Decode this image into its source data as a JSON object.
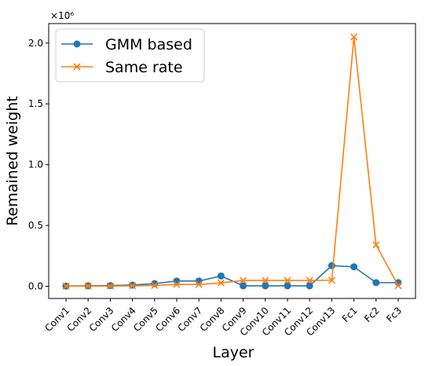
{
  "chart_data": {
    "type": "line",
    "xlabel": "Layer",
    "ylabel": "Remained weight",
    "y_multiplier": "×10⁶",
    "categories": [
      "Conv1",
      "Conv2",
      "Conv3",
      "Conv4",
      "Conv5",
      "Conv6",
      "Conv7",
      "Conv8",
      "Conv9",
      "Conv10",
      "Conv11",
      "Conv12",
      "Conv13",
      "Fc1",
      "Fc2",
      "Fc3"
    ],
    "y_ticks": [
      0.0,
      0.5,
      1.0,
      1.5,
      2.0
    ],
    "y_tick_labels": [
      "0.0",
      "0.5",
      "1.0",
      "1.5",
      "2.0"
    ],
    "ylim": [
      -0.1,
      2.16
    ],
    "grid": false,
    "legend_position": "top-left",
    "series": [
      {
        "name": "GMM based",
        "color": "#1f77b4",
        "marker": "circle",
        "values": [
          0.002,
          0.004,
          0.006,
          0.01,
          0.022,
          0.043,
          0.043,
          0.085,
          0.004,
          0.004,
          0.004,
          0.004,
          0.17,
          0.16,
          0.03,
          0.03
        ]
      },
      {
        "name": "Same rate",
        "color": "#ff7f0e",
        "marker": "x",
        "values": [
          0.001,
          0.002,
          0.002,
          0.004,
          0.007,
          0.015,
          0.015,
          0.028,
          0.048,
          0.048,
          0.048,
          0.048,
          0.05,
          2.05,
          0.34,
          0.005
        ]
      }
    ]
  }
}
